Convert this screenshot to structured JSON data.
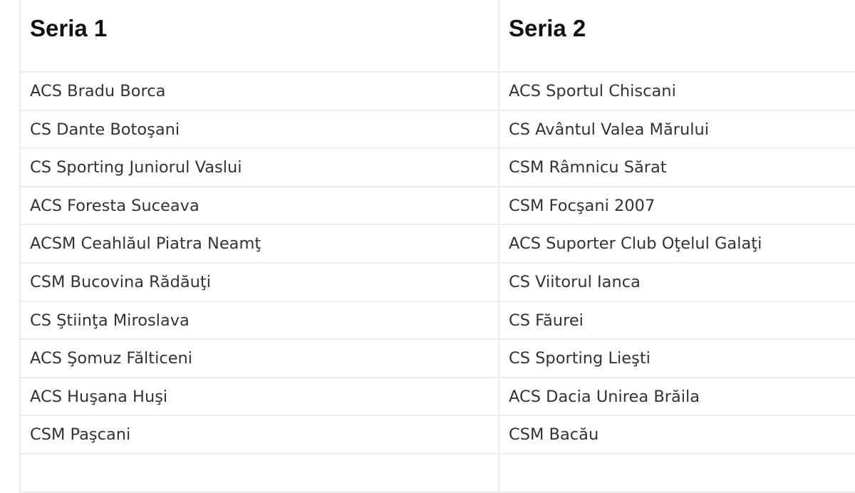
{
  "headers": [
    "Seria 1",
    "Seria 2"
  ],
  "rows": [
    [
      "ACS Bradu Borca",
      "ACS Sportul Chiscani"
    ],
    [
      "CS Dante Botoşani",
      "CS Avântul Valea Mărului"
    ],
    [
      "CS Sporting Juniorul Vaslui",
      "CSM Râmnicu Sărat"
    ],
    [
      "ACS Foresta Suceava",
      "CSM Focşani 2007"
    ],
    [
      "ACSM Ceahlăul Piatra Neamţ",
      "ACS Suporter Club Oţelul Galaţi"
    ],
    [
      "CSM Bucovina Rădăuţi",
      "CS Viitorul Ianca"
    ],
    [
      "CS Ştiinţa Miroslava",
      "CS Făurei"
    ],
    [
      "ACS Şomuz Fălticeni",
      "CS Sporting Lieşti"
    ],
    [
      "ACS Huşana Huşi",
      "ACS Dacia Unirea Brăila"
    ],
    [
      "CSM Paşcani",
      "CSM Bacău"
    ],
    [
      "",
      ""
    ]
  ]
}
